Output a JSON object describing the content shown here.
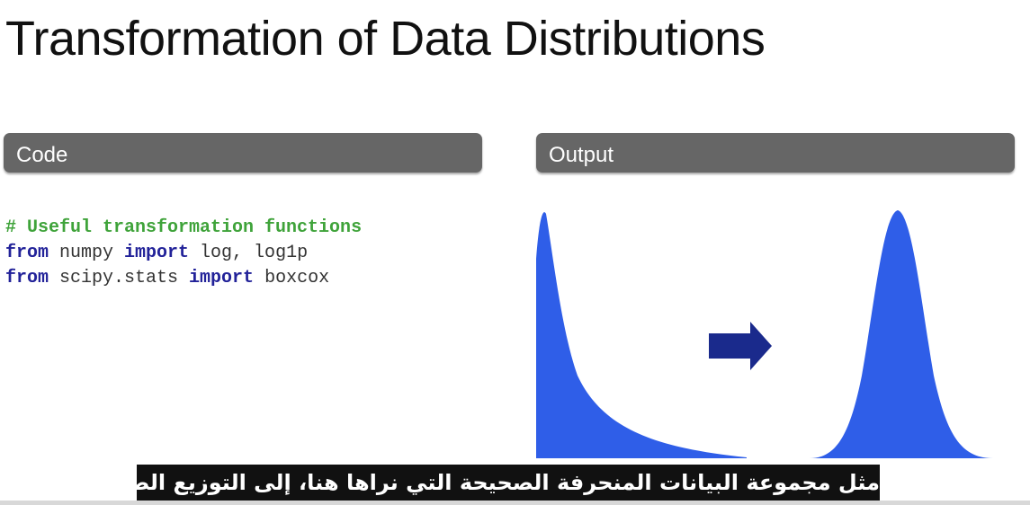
{
  "slide": {
    "title": "Transformation of Data Distributions"
  },
  "panels": {
    "code_label": "Code",
    "output_label": "Output"
  },
  "code": {
    "line1": "# Useful transformation functions",
    "line2_kw1": "from",
    "line2_mod": " numpy ",
    "line2_kw2": "import",
    "line2_rest": " log, log1p",
    "line3_kw1": "from",
    "line3_mod": " scipy.stats ",
    "line3_kw2": "import",
    "line3_rest": " boxcox"
  },
  "output": {
    "skewed_distribution_color": "#2f5ee8",
    "normal_distribution_color": "#2f5ee8",
    "arrow_color": "#1a2a8c",
    "arrow_icon": "arrow-right-icon"
  },
  "subtitle": {
    "text": "مثل مجموعة البيانات المنحرفة الصحيحة التي نراها هنا، إلى التوزيع الطبيعي."
  }
}
